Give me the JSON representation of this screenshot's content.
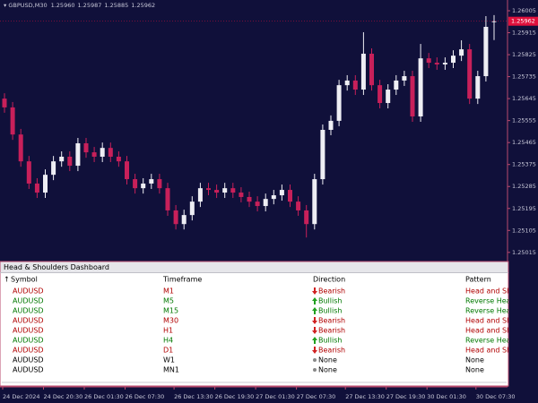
{
  "header": {
    "symbol": "GBPUSD,M30",
    "ohlc": [
      "1.25960",
      "1.25987",
      "1.25885",
      "1.25962"
    ]
  },
  "chart_data": {
    "type": "candlestick",
    "categories": [
      "24 Dec 2024",
      null,
      null,
      null,
      null,
      "24 Dec 20:30",
      null,
      null,
      null,
      null,
      "26 Dec 01:30",
      null,
      null,
      null,
      null,
      "26 Dec 07:30",
      null,
      null,
      null,
      null,
      null,
      "26 Dec 13:30",
      null,
      null,
      null,
      null,
      "26 Dec 19:30",
      null,
      null,
      null,
      null,
      "27 Dec 01:30",
      null,
      null,
      null,
      null,
      "27 Dec 07:30",
      null,
      null,
      null,
      null,
      null,
      "27 Dec 13:30",
      null,
      null,
      null,
      null,
      "27 Dec 19:30",
      null,
      null,
      null,
      null,
      "30 Dec 01:30",
      null,
      null,
      null,
      null,
      null,
      "30 Dec 07:30",
      null,
      null
    ],
    "open": [
      1.25645,
      1.25609,
      1.25498,
      1.25388,
      1.25297,
      1.2526,
      1.25333,
      1.25388,
      1.25407,
      1.2537,
      1.25462,
      1.25425,
      1.25407,
      1.25443,
      1.25407,
      1.25388,
      1.25315,
      1.25278,
      1.25297,
      1.25315,
      1.25278,
      1.25187,
      1.25131,
      1.25168,
      1.25223,
      1.25278,
      1.25271,
      1.2526,
      1.25278,
      1.2526,
      1.25242,
      1.25223,
      1.25205,
      1.25234,
      1.25249,
      1.25271,
      1.25223,
      1.25187,
      1.25131,
      1.25315,
      1.25517,
      1.25554,
      1.257,
      1.25719,
      1.25682,
      1.25829,
      1.257,
      1.25627,
      1.25682,
      1.25719,
      1.25737,
      1.25572,
      1.2581,
      1.25792,
      1.25785,
      1.25792,
      1.25821,
      1.25847,
      1.25645,
      1.25737,
      1.2596
    ],
    "high": [
      1.25667,
      1.25631,
      1.25521,
      1.2541,
      1.25319,
      1.25355,
      1.2541,
      1.25429,
      1.25429,
      1.25484,
      1.25484,
      1.25447,
      1.25465,
      1.25465,
      1.25429,
      1.2541,
      1.25337,
      1.25319,
      1.25337,
      1.25337,
      1.253,
      1.25209,
      1.2519,
      1.25245,
      1.253,
      1.253,
      1.25293,
      1.253,
      1.253,
      1.25282,
      1.25264,
      1.25245,
      1.25256,
      1.25271,
      1.25293,
      1.25293,
      1.25245,
      1.25209,
      1.25337,
      1.25539,
      1.25576,
      1.25722,
      1.25741,
      1.25741,
      1.25917,
      1.25851,
      1.25722,
      1.25704,
      1.25741,
      1.25759,
      1.25759,
      1.25869,
      1.25832,
      1.25814,
      1.25814,
      1.25843,
      1.25884,
      1.25869,
      1.25759,
      1.25983,
      1.25987
    ],
    "low": [
      1.25587,
      1.25476,
      1.25366,
      1.25275,
      1.25238,
      1.25238,
      1.25311,
      1.25366,
      1.25348,
      1.25348,
      1.25403,
      1.25385,
      1.25385,
      1.25385,
      1.25366,
      1.25293,
      1.25256,
      1.25256,
      1.25275,
      1.25256,
      1.25165,
      1.25109,
      1.25109,
      1.25146,
      1.25201,
      1.25249,
      1.25238,
      1.25238,
      1.25238,
      1.2522,
      1.25201,
      1.25183,
      1.25183,
      1.25212,
      1.25227,
      1.25201,
      1.25165,
      1.25076,
      1.25109,
      1.25293,
      1.25495,
      1.25532,
      1.25678,
      1.2566,
      1.2566,
      1.25678,
      1.25605,
      1.25605,
      1.2566,
      1.25697,
      1.2555,
      1.2555,
      1.2577,
      1.25763,
      1.25763,
      1.2577,
      1.25799,
      1.25623,
      1.25623,
      1.25715,
      1.25885
    ],
    "close": [
      1.25609,
      1.25498,
      1.25388,
      1.25297,
      1.2526,
      1.25333,
      1.25388,
      1.25407,
      1.2537,
      1.25462,
      1.25425,
      1.25407,
      1.25443,
      1.25407,
      1.25388,
      1.25315,
      1.25278,
      1.25297,
      1.25315,
      1.25278,
      1.25187,
      1.25131,
      1.25168,
      1.25223,
      1.25278,
      1.25271,
      1.2526,
      1.25278,
      1.2526,
      1.25242,
      1.25223,
      1.25205,
      1.25234,
      1.25249,
      1.25271,
      1.25223,
      1.25187,
      1.25131,
      1.25315,
      1.25517,
      1.25554,
      1.257,
      1.25719,
      1.25682,
      1.25829,
      1.257,
      1.25627,
      1.25682,
      1.25719,
      1.25737,
      1.25572,
      1.2581,
      1.25792,
      1.25785,
      1.25792,
      1.25821,
      1.25847,
      1.25645,
      1.25737,
      1.25939,
      1.25962
    ],
    "price": 1.25962,
    "price_color": "#e0103c",
    "up_color": "#eeeef4",
    "down_color": "#c8205a",
    "ylim": [
      1.24442,
      1.26049
    ],
    "yticks": [
      1.26005,
      1.25915,
      1.25825,
      1.25735,
      1.25645,
      1.25555,
      1.25465,
      1.25375,
      1.25285,
      1.25195,
      1.25105,
      1.25015
    ]
  },
  "dashboard": {
    "title": "Head & Shoulders Dashboard",
    "columns": [
      "Symbol",
      "Timeframe",
      "Direction",
      "Pattern"
    ],
    "rows": [
      {
        "symbol": "AUDUSD",
        "timeframe": "M1",
        "direction": "Bearish",
        "pattern": "Head and Shoulders",
        "color": "#b00000",
        "arrow": "down"
      },
      {
        "symbol": "AUDUSD",
        "timeframe": "M5",
        "direction": "Bullish",
        "pattern": "Reverse Head and Shoulders",
        "color": "#007800",
        "arrow": "up"
      },
      {
        "symbol": "AUDUSD",
        "timeframe": "M15",
        "direction": "Bullish",
        "pattern": "Reverse Head and Shoulders",
        "color": "#007800",
        "arrow": "up"
      },
      {
        "symbol": "AUDUSD",
        "timeframe": "M30",
        "direction": "Bearish",
        "pattern": "Head and Shoulders",
        "color": "#b00000",
        "arrow": "down"
      },
      {
        "symbol": "AUDUSD",
        "timeframe": "H1",
        "direction": "Bearish",
        "pattern": "Head and Shoulders",
        "color": "#b00000",
        "arrow": "down"
      },
      {
        "symbol": "AUDUSD",
        "timeframe": "H4",
        "direction": "Bullish",
        "pattern": "Reverse Head and Shoulders",
        "color": "#007800",
        "arrow": "up"
      },
      {
        "symbol": "AUDUSD",
        "timeframe": "D1",
        "direction": "Bearish",
        "pattern": "Head and Shoulders",
        "color": "#b00000",
        "arrow": "down"
      },
      {
        "symbol": "AUDUSD",
        "timeframe": "W1",
        "direction": "None",
        "pattern": "None",
        "color": "#000000",
        "arrow": "dot"
      },
      {
        "symbol": "AUDUSD",
        "timeframe": "MN1",
        "direction": "None",
        "pattern": "None",
        "color": "#000000",
        "arrow": "dot"
      }
    ]
  }
}
